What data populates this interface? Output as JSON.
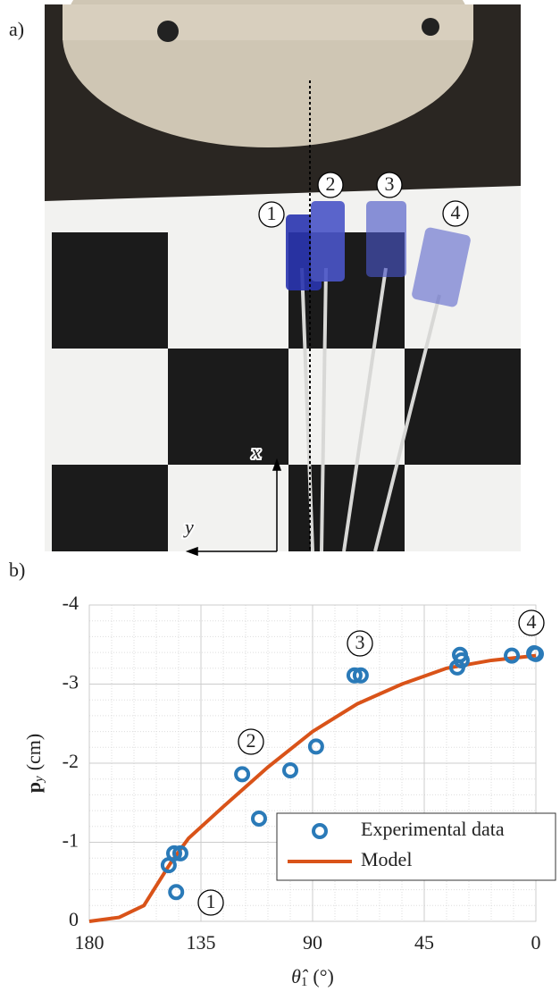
{
  "panels": {
    "a": "a)",
    "b": "b)"
  },
  "photo": {
    "markers": [
      "1",
      "2",
      "3",
      "4"
    ],
    "axes": {
      "x": "x",
      "y": "y"
    }
  },
  "chart_data": {
    "type": "line",
    "xlabel": {
      "symbol": "θ̂",
      "subscript": "1",
      "unit": "(°)"
    },
    "ylabel": {
      "symbol": "p",
      "subscript": "y",
      "unit": "(cm)"
    },
    "xlim": [
      180,
      0
    ],
    "xticks": [
      180,
      135,
      90,
      45,
      0
    ],
    "ylim": [
      0,
      -4
    ],
    "yticks": [
      0,
      -1,
      -2,
      -3,
      -4
    ],
    "grid": true,
    "minor_grid": true,
    "legend": "lower right",
    "annotations": [
      "1",
      "2",
      "3",
      "4"
    ],
    "series": [
      {
        "name": "Experimental data",
        "type": "scatter",
        "color": "#2a7ab8",
        "x": [
          148,
          145.8,
          143.3,
          145,
          118.4,
          111.6,
          99,
          88.6,
          73.1,
          70.6,
          31.7,
          30.6,
          29.9,
          9.7,
          0.7,
          0
        ],
        "values": [
          -0.71,
          -0.86,
          -0.86,
          -0.37,
          -1.86,
          -1.3,
          -1.91,
          -2.21,
          -3.11,
          -3.11,
          -3.21,
          -3.37,
          -3.3,
          -3.36,
          -3.39,
          -3.38
        ]
      },
      {
        "name": "Model",
        "type": "line",
        "color": "#d95319",
        "x": [
          180,
          168,
          158,
          147,
          140,
          126,
          108,
          90,
          72,
          54,
          36,
          18,
          0
        ],
        "values": [
          0,
          -0.05,
          -0.2,
          -0.75,
          -1.05,
          -1.45,
          -1.95,
          -2.4,
          -2.75,
          -3.0,
          -3.2,
          -3.3,
          -3.36
        ]
      }
    ]
  }
}
